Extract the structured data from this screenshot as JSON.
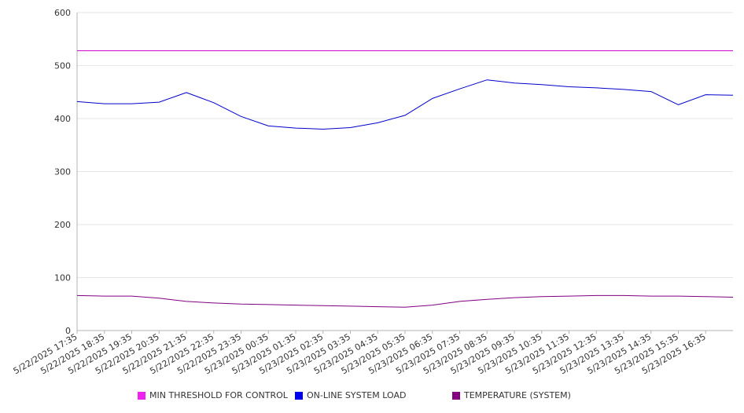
{
  "chart_data": {
    "type": "line",
    "title": "",
    "xlabel": "",
    "ylabel": "",
    "ylim": [
      0,
      600
    ],
    "yticks": [
      0,
      100,
      200,
      300,
      400,
      500,
      600
    ],
    "grid": true,
    "legend_position": "bottom",
    "xtick_labels": [
      "5/22/2025 17:35",
      "5/22/2025 18:35",
      "5/22/2025 19:35",
      "5/22/2025 20:35",
      "5/22/2025 21:35",
      "5/22/2025 22:35",
      "5/22/2025 23:35",
      "5/23/2025 00:35",
      "5/23/2025 01:35",
      "5/23/2025 02:35",
      "5/23/2025 03:35",
      "5/23/2025 04:35",
      "5/23/2025 05:35",
      "5/23/2025 06:35",
      "5/23/2025 07:35",
      "5/23/2025 08:35",
      "5/23/2025 09:35",
      "5/23/2025 10:35",
      "5/23/2025 11:35",
      "5/23/2025 12:35",
      "5/23/2025 13:35",
      "5/23/2025 14:35",
      "5/23/2025 15:35",
      "5/23/2025 16:35"
    ],
    "x": [
      "5/22/2025 17:35",
      "5/22/2025 18:35",
      "5/22/2025 19:35",
      "5/22/2025 20:35",
      "5/22/2025 21:35",
      "5/22/2025 22:35",
      "5/22/2025 23:35",
      "5/23/2025 00:35",
      "5/23/2025 01:35",
      "5/23/2025 02:35",
      "5/23/2025 03:35",
      "5/23/2025 04:35",
      "5/23/2025 05:35",
      "5/23/2025 06:35",
      "5/23/2025 07:35",
      "5/23/2025 08:35",
      "5/23/2025 09:35",
      "5/23/2025 10:35",
      "5/23/2025 11:35",
      "5/23/2025 12:35",
      "5/23/2025 13:35",
      "5/23/2025 14:35",
      "5/23/2025 15:35",
      "5/23/2025 16:35",
      "5/23/2025 17:35"
    ],
    "series": [
      {
        "name": "MIN THRESHOLD FOR CONTROL",
        "color": "#cc00cc",
        "values": [
          528,
          528,
          528,
          528,
          528,
          528,
          528,
          528,
          528,
          528,
          528,
          528,
          528,
          528,
          528,
          528,
          528,
          528,
          528,
          528,
          528,
          528,
          528,
          528,
          528
        ]
      },
      {
        "name": "ON-LINE SYSTEM LOAD",
        "color": "#0000cc",
        "values": [
          432,
          428,
          428,
          431,
          449,
          430,
          404,
          386,
          382,
          380,
          383,
          392,
          406,
          438,
          456,
          473,
          467,
          464,
          460,
          458,
          455,
          451,
          426,
          445,
          444
        ]
      },
      {
        "name": "TEMPERATURE (SYSTEM)",
        "color": "#800080",
        "values": [
          66,
          65,
          65,
          61,
          55,
          52,
          50,
          49,
          48,
          47,
          46,
          45,
          44,
          48,
          55,
          59,
          62,
          64,
          65,
          66,
          66,
          65,
          65,
          64,
          63
        ]
      }
    ]
  }
}
